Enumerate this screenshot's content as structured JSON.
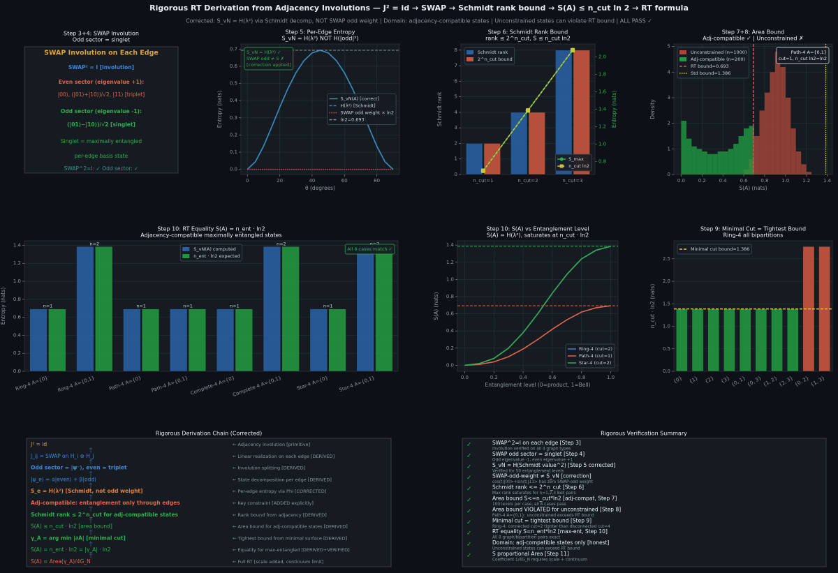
{
  "title": "Rigorous RT Derivation from Adjacency Involutions — J² = id → SWAP → Schmidt rank bound → S(A) ≤ n_cut ln 2 → RT formula",
  "subtitle": "Corrected: S_vN = H(λ²) via Schmidt decomp, NOT SWAP odd weight  |  Domain: adjacency-compatible states  |  Unconstrained states can violate RT bound  |  ALL PASS ✓",
  "swap_panel": {
    "title": "Step 3+4: SWAP Involution",
    "subtitle": "Odd sector = singlet",
    "lines": [
      {
        "text": "SWAP Involution on Each Edge",
        "color": "#d9a43a",
        "bold": true
      },
      {
        "text": "SWAP² = I  [involution]",
        "color": "#3f86d8",
        "bold": true
      },
      {
        "text": "Even sector (eigenvalue +1):",
        "color": "#e0654a",
        "bold": true
      },
      {
        "text": "|00⟩, (|01⟩+|10⟩)/√2, |11⟩  [triplet]",
        "color": "#e0654a",
        "bold": false
      },
      {
        "text": "Odd sector (eigenvalue -1):",
        "color": "#2fae4e",
        "bold": true
      },
      {
        "text": "(|01⟩−|10⟩)/√2  [singlet]",
        "color": "#2fae4e",
        "bold": true
      },
      {
        "text": "Singlet = maximally entangled",
        "color": "#2fae4e",
        "bold": false
      },
      {
        "text": "per-edge basis state",
        "color": "#2fae4e",
        "bold": false
      },
      {
        "text": "SWAP^2=I: ✓  Odd sector: ✓",
        "color": "#2a9d8f",
        "bold": false
      }
    ]
  },
  "chart_data": [
    {
      "type": "line",
      "title": "Step 5: Per-Edge Entropy",
      "subtitle": "S_vN = H(λ²) NOT H(|odd|²)",
      "x": [
        0,
        5,
        10,
        15,
        20,
        25,
        30,
        35,
        40,
        45,
        50,
        55,
        60,
        65,
        70,
        75,
        80,
        85,
        90
      ],
      "series": [
        {
          "name": "S_vN(A) [correct]",
          "color": "#2a9d8f",
          "dash": "solid",
          "values": [
            0,
            0.045,
            0.135,
            0.246,
            0.361,
            0.469,
            0.562,
            0.633,
            0.678,
            0.693,
            0.678,
            0.633,
            0.562,
            0.469,
            0.361,
            0.246,
            0.135,
            0.045,
            0
          ]
        },
        {
          "name": "H(λ²) [Schmidt]",
          "color": "#3f7fd0",
          "dash": "dashed",
          "values": [
            0,
            0.045,
            0.135,
            0.246,
            0.361,
            0.469,
            0.562,
            0.633,
            0.678,
            0.693,
            0.678,
            0.633,
            0.562,
            0.469,
            0.361,
            0.246,
            0.135,
            0.045,
            0
          ]
        },
        {
          "name": "SWAP odd weight × ln2",
          "color": "#d9534f",
          "dash": "dotted",
          "values": [
            0,
            0,
            0,
            0,
            0,
            0,
            0,
            0,
            0,
            0,
            0,
            0,
            0,
            0,
            0,
            0,
            0,
            0,
            0
          ]
        }
      ],
      "reference_lines": [
        {
          "name": "ln2=0.693",
          "value": 0.693,
          "color": "#8b949e",
          "dash": "dashed"
        }
      ],
      "xlim": [
        -4,
        94
      ],
      "xticks": [
        0,
        20,
        40,
        60,
        80
      ],
      "ylim": [
        -0.03,
        0.73
      ],
      "yticks": [
        {
          "value": 0,
          "label": "0.0"
        },
        0.1,
        0.2,
        0.3,
        0.4,
        0.5,
        0.6,
        0.7
      ],
      "xlabel": "θ (degrees)",
      "ylabel": "Entropy (nats)",
      "grid": true,
      "legend": "center right",
      "annotation": {
        "lines": [
          "S_vN = H(λ²) ✓",
          "SWAP odd ≠ S ✗",
          "[correction applied]"
        ],
        "color": "#2fae4e",
        "corner": "upper left"
      }
    },
    {
      "type": "bar",
      "title": "Step 6: Schmidt Rank Bound",
      "subtitle": "rank ≤ 2^n_cut, S ≤ n_cut ln2",
      "categories": [
        "n_cut=1",
        "n_cut=2",
        "n_cut=3"
      ],
      "series": [
        {
          "name": "Schmidt rank",
          "color": "#2a5fa0",
          "values": [
            2,
            4,
            8
          ]
        },
        {
          "name": "2^n_cut bound",
          "color": "#c8553f",
          "values": [
            2,
            4,
            8
          ]
        },
        {
          "name": "S_max",
          "color": "#2fae4e",
          "axis": "y2",
          "dash": "solid",
          "marker": "circle",
          "values": [
            0.693,
            1.386,
            2.079
          ]
        },
        {
          "name": "n_cut ln2",
          "color": "#d4c43a",
          "axis": "y2",
          "dash": "dashed",
          "marker": "square",
          "values": [
            0.693,
            1.386,
            2.079
          ]
        }
      ],
      "ylim": [
        0,
        8.4
      ],
      "yticks": [
        0,
        1,
        2,
        3,
        4,
        5,
        6,
        7,
        8
      ],
      "y2lim": [
        0.65,
        2.15
      ],
      "y2ticks": [
        0.8,
        {
          "value": 1,
          "label": "1.0"
        },
        1.2,
        1.4,
        1.6,
        1.8,
        {
          "value": 2,
          "label": "2.0"
        }
      ],
      "ylabel": "Schmidt rank",
      "y2label": "Entropy (nats)",
      "grid": true,
      "legend": "upper left",
      "y2_legend": "lower right"
    },
    {
      "type": "histogram",
      "title": "Step 7+8: Area Bound",
      "subtitle": "Adj-compatible ✓  |  Unconstrained ✗",
      "bins": [
        0,
        0.05,
        0.1,
        0.15,
        0.2,
        0.25,
        0.3,
        0.35,
        0.4,
        0.45,
        0.5,
        0.55,
        0.6,
        0.65,
        0.7,
        0.75,
        0.8,
        0.85,
        0.9,
        0.95,
        1,
        1.05,
        1.1,
        1.15,
        1.2,
        1.25
      ],
      "series": [
        {
          "name": "Unconstrained (n=1000)",
          "color": "#a8473a",
          "values": [
            0,
            0,
            0,
            0,
            0,
            0,
            0,
            0,
            0,
            0,
            0,
            0,
            0.2,
            0.6,
            1.5,
            2.5,
            3.2,
            4.0,
            4.8,
            4.2,
            3.0,
            1.8,
            0.9,
            0.4,
            0.1
          ]
        },
        {
          "name": "Adj-compatible (n=200)",
          "color": "#1f9a42",
          "values": [
            2.1,
            1.4,
            1.1,
            1.0,
            0.9,
            0.8,
            0.8,
            0.9,
            0.9,
            1.0,
            1.2,
            1.5,
            1.8,
            1.9,
            0,
            0,
            0,
            0,
            0,
            0,
            0,
            0,
            0,
            0,
            0
          ]
        }
      ],
      "reference_lines": [
        {
          "name": "RT bound=0.693",
          "value": 0.693,
          "color": "#d9534f",
          "dash": "dashed"
        },
        {
          "name": "Std bound=1.386",
          "value": 1.386,
          "color": "#e8c33a",
          "dash": "dotted"
        }
      ],
      "xlim": [
        -0.07,
        1.45
      ],
      "xticks": [
        {
          "value": 0,
          "label": "0.0"
        },
        0.2,
        0.4,
        0.6,
        0.8,
        {
          "value": 1,
          "label": "1.0"
        },
        1.2,
        1.4
      ],
      "ylim": [
        0,
        5.1
      ],
      "yticks": [
        0,
        1,
        2,
        3,
        4,
        5
      ],
      "xlabel": "S(A) (nats)",
      "ylabel": "Density",
      "grid": true,
      "legend": "upper left",
      "annotation": {
        "lines": [
          "Path-4 A={0,1}",
          "cut=1, n_cut ln2=ln2"
        ],
        "color": "#e6edf3",
        "corner": "upper right"
      }
    },
    {
      "type": "bar",
      "title": "Step 10: RT Equality S(A) = n_ent · ln2",
      "subtitle": "Adjacency-compatible maximally entangled states",
      "categories": [
        "Ring-4 A={0}",
        "Ring-4 A={0,1}",
        "Path-4 A={0}",
        "Path-4 A={0,1}",
        "Complete-4 A={0}",
        "Complete-4 A={0,1}",
        "Star-4 A={0}",
        "Star-4 A={0,1}"
      ],
      "series": [
        {
          "name": "S_vN(A) computed",
          "color": "#2a5fa0",
          "values": [
            0.693,
            1.386,
            0.693,
            0.693,
            0.693,
            1.386,
            0.693,
            1.386
          ]
        },
        {
          "name": "n_ent · ln2 expected",
          "color": "#22963f",
          "values": [
            0.693,
            1.386,
            0.693,
            0.693,
            0.693,
            1.386,
            0.693,
            1.386
          ]
        }
      ],
      "bar_annotations": [
        "n=1",
        "n=2",
        "n=1",
        "n=1",
        "n=1",
        "n=2",
        "n=1",
        "n=2"
      ],
      "ylim": [
        0,
        1.45
      ],
      "yticks": [
        {
          "value": 0,
          "label": "0.0"
        },
        0.2,
        0.4,
        0.6,
        0.8,
        {
          "value": 1,
          "label": "1.0"
        },
        1.2,
        1.4
      ],
      "ylabel": "Entropy (nats)",
      "grid": true,
      "legend": "upper center",
      "annotation": {
        "lines": [
          "All 8 cases match ✓"
        ],
        "color": "#2fae4e",
        "corner": "upper right"
      }
    },
    {
      "type": "line",
      "title": "Step 10: S(A) vs Entanglement Level",
      "subtitle": "S(A) = H(λ²), saturates at n_cut · ln2",
      "x": [
        0,
        0.1,
        0.2,
        0.3,
        0.4,
        0.5,
        0.6,
        0.7,
        0.8,
        0.9,
        1
      ],
      "series": [
        {
          "name": "Ring-4 (cut=2)",
          "color": "#3f7fd0",
          "dash": "solid",
          "values": [
            0,
            0.02,
            0.08,
            0.2,
            0.38,
            0.6,
            0.84,
            1.06,
            1.24,
            1.34,
            1.386
          ]
        },
        {
          "name": "Path-4 (cut=1)",
          "color": "#e0654a",
          "dash": "solid",
          "values": [
            0,
            0.01,
            0.04,
            0.1,
            0.19,
            0.3,
            0.42,
            0.53,
            0.62,
            0.67,
            0.693
          ]
        },
        {
          "name": "Star-4 (cut=2)",
          "color": "#2fae4e",
          "dash": "solid",
          "values": [
            0,
            0.02,
            0.08,
            0.2,
            0.38,
            0.6,
            0.84,
            1.06,
            1.24,
            1.34,
            1.386
          ]
        }
      ],
      "reference_lines": [
        {
          "value": 1.386,
          "color": "#2fae4e",
          "dash": "dashed"
        },
        {
          "value": 0.693,
          "color": "#e0654a",
          "dash": "dashed"
        }
      ],
      "xlim": [
        -0.05,
        1.05
      ],
      "xticks": [
        {
          "value": 0,
          "label": "0.0"
        },
        0.2,
        0.4,
        0.6,
        0.8,
        {
          "value": 1,
          "label": "1.0"
        }
      ],
      "ylim": [
        -0.07,
        1.45
      ],
      "yticks": [
        {
          "value": 0,
          "label": "0.0"
        },
        0.2,
        0.4,
        0.6,
        0.8,
        {
          "value": 1,
          "label": "1.0"
        },
        1.2,
        1.4
      ],
      "xlabel": "Entanglement level (0=product, 1=Bell)",
      "ylabel": "S(A) (nats)",
      "grid": true,
      "legend": "lower right"
    },
    {
      "type": "bar",
      "title": "Step 9: Minimal Cut = Tightest Bound",
      "subtitle": "Ring-4 all bipartitions",
      "categories": [
        "{0}",
        "{1}",
        "{2}",
        "{3}",
        "{0, 1}",
        "{0, 3}",
        "{1, 2}",
        "{2, 3}",
        "{0, 2}",
        "{1, 3}"
      ],
      "series": [
        {
          "colors": [
            "#22963f",
            "#22963f",
            "#22963f",
            "#22963f",
            "#22963f",
            "#22963f",
            "#22963f",
            "#22963f",
            "#c8553f",
            "#c8553f"
          ],
          "values": [
            1.386,
            1.386,
            1.386,
            1.386,
            1.386,
            1.386,
            1.386,
            1.386,
            2.773,
            2.773
          ]
        }
      ],
      "reference_lines": [
        {
          "name": "Minimal cut bound=1.386",
          "value": 1.386,
          "color": "#e8c33a",
          "dash": "dashed"
        }
      ],
      "ylim": [
        0,
        2.9
      ],
      "yticks": [
        {
          "value": 0,
          "label": "0.0"
        },
        0.5,
        {
          "value": 1,
          "label": "1.0"
        },
        1.5,
        {
          "value": 2,
          "label": "2.0"
        },
        2.5
      ],
      "ylabel": "n_cut · ln2 (nats)",
      "grid": true,
      "legend": "upper left"
    }
  ],
  "derivation_chain": {
    "title": "Rigorous Derivation Chain (Corrected)",
    "items": [
      {
        "formula": "J² = id",
        "note": "← Adjacency involution [primitive]",
        "color": "#d9a43a",
        "bold": false
      },
      {
        "formula": "J_ij = SWAP on H_i ⊗ H_j",
        "note": "← Linear realization on each edge [DERIVED]",
        "color": "#3f86d8",
        "bold": false
      },
      {
        "formula": "Odd sector = |ψ⁻⟩, even = triplet",
        "note": "← Involution splitting [DERIVED]",
        "color": "#3f86d8",
        "bold": true
      },
      {
        "formula": "|ψ_e⟩ = α|even⟩ + β|odd⟩",
        "note": "← State decomposition per edge [DERIVED]",
        "color": "#3f86d8",
        "bold": false
      },
      {
        "formula": "S_e = H(λ²) [Schmidt, not odd weight]",
        "note": "← Per-edge entropy via Phi [CORRECTED]",
        "color": "#e0813a",
        "bold": true
      },
      {
        "formula": "Adj-compatible: entanglement only through edges",
        "note": "← Key constraint [ADDED explicitly]",
        "color": "#e0654a",
        "bold": true
      },
      {
        "formula": "Schmidt rank ≤ 2^n_cut for adj-compatible states",
        "note": "← Rank bound from adjacency [DERIVED]",
        "color": "#2fae4e",
        "bold": true
      },
      {
        "formula": "S(A) ≤ n_cut · ln2 [area bound]",
        "note": "← Area bound for adj-compatible states [DERIVED]",
        "color": "#2fae4e",
        "bold": false
      },
      {
        "formula": "γ_A = arg min |∂A| [minimal cut]",
        "note": "← Tightest bound from minimal surface [DERIVED]",
        "color": "#2fae4e",
        "bold": true
      },
      {
        "formula": "S(A) = n_ent · ln2 = |γ_A| · ln2",
        "note": "← Equality for max-entangled [DERIVED+VERIFIED]",
        "color": "#2fae4e",
        "bold": false
      },
      {
        "formula": "S(A) = Area(γ_A)/4G_N",
        "note": "← Full RT [scale added, continuum limit]",
        "color": "#e0654a",
        "bold": false
      }
    ]
  },
  "verification_summary": {
    "title": "Rigorous Verification Summary",
    "check": "✓",
    "items": [
      {
        "title": "SWAP^2=I on each edge [Step 3]",
        "detail": "Involution verified on all 4 graph types"
      },
      {
        "title": "SWAP odd sector = singlet [Step 4]",
        "detail": "Odd eigenvalue -1, even eigenvalue +1"
      },
      {
        "title": "S_vN = H(Schmidt value^2) [Step 5 corrected]",
        "detail": "Verified for 50 entanglement levels"
      },
      {
        "title": "SWAP-odd-weight ≠ S_vN [correction]",
        "detail": "cos(t)|00>+sin(t)|11> has zero SWAP-odd weight"
      },
      {
        "title": "Schmidt rank <= 2^n_cut [Step 6]",
        "detail": "Max rank saturates for n=1,2,3 Bell pairs"
      },
      {
        "title": "Area bound S<=n_cut*ln2 [adj-compat, Step 7]",
        "detail": "100 levels per case, all 8 cases pass"
      },
      {
        "title": "Area bound VIOLATED for unconstrained [Step 8]",
        "detail": "Path-4 A={0,1}: unconstrained exceeds RT bound"
      },
      {
        "title": "Minimal cut = tightest bound [Step 9]",
        "detail": "Ring-4: connected cut=2 tighter than disconnected cut=4"
      },
      {
        "title": "RT equality S=n_ent*ln2 [max-ent, Step 10]",
        "detail": "All 8 graph/bipartition pairs exact"
      },
      {
        "title": "Domain: adj-compatible states only [honest]",
        "detail": "Unconstrained states can exceed RT bound"
      },
      {
        "title": "S proportional Area [Step 11]",
        "detail": "Coefficient 1/4G_N requires scale + continuum"
      }
    ]
  }
}
